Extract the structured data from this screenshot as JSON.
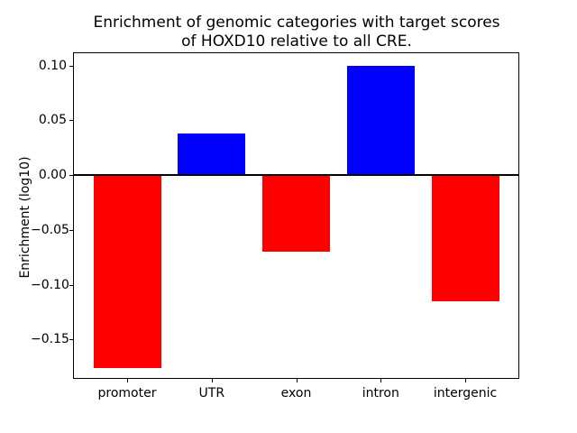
{
  "chart_data": {
    "type": "bar",
    "title": "Enrichment of genomic categories with target scores\nof HOXD10 relative to all CRE.",
    "xlabel": "",
    "ylabel": "Enrichment (log10)",
    "categories": [
      "promoter",
      "UTR",
      "exon",
      "intron",
      "intergenic"
    ],
    "values": [
      -0.176,
      0.038,
      -0.07,
      0.1,
      -0.115
    ],
    "bar_colors": [
      "#ff0000",
      "#0000ff",
      "#ff0000",
      "#0000ff",
      "#ff0000"
    ],
    "positive_color": "#0000ff",
    "negative_color": "#ff0000",
    "ylim": [
      -0.186,
      0.112
    ],
    "yticks": [
      0.1,
      0.05,
      0.0,
      -0.05,
      -0.1,
      -0.15
    ],
    "ytick_labels": [
      "0.10",
      "0.05",
      "0.00",
      "−0.05",
      "−0.10",
      "−0.15"
    ],
    "bar_width_fraction": 0.8,
    "zero_line": true,
    "grid": false,
    "legend": null
  }
}
